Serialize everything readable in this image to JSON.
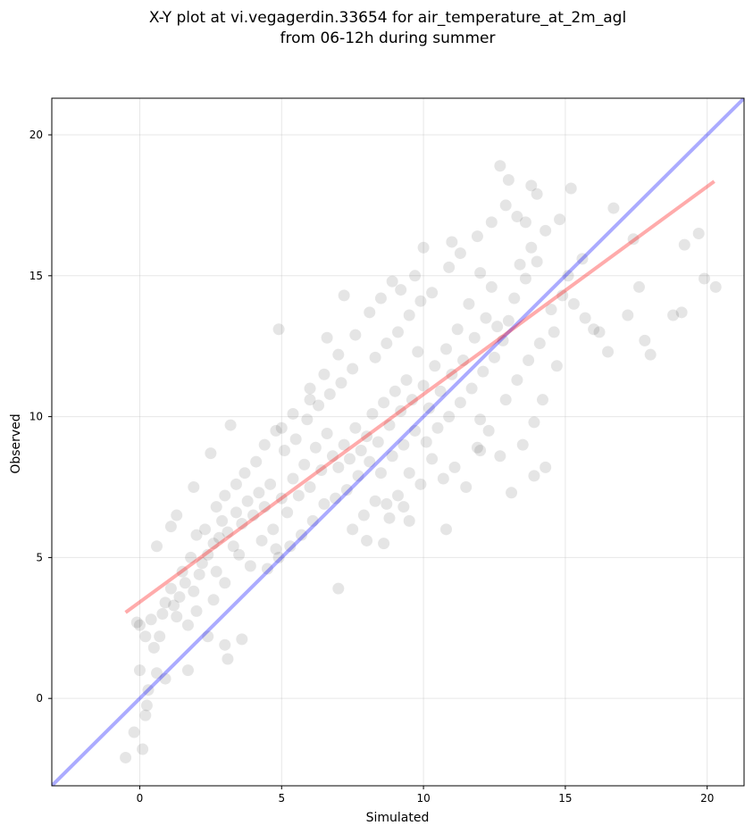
{
  "chart_data": {
    "type": "scatter",
    "title_line1": "X-Y plot at vi.vegagerdin.33654 for air_temperature_at_2m_agl",
    "title_line2": "from 06-12h during summer",
    "xlabel": "Simulated",
    "ylabel": "Observed",
    "xlim": [
      -3.1,
      21.3
    ],
    "ylim": [
      -3.1,
      21.3
    ],
    "xticks": [
      0,
      5,
      10,
      15,
      20
    ],
    "yticks": [
      0,
      5,
      10,
      15,
      20
    ],
    "xtick_labels": [
      "0",
      "5",
      "10",
      "15",
      "20"
    ],
    "ytick_labels": [
      "0",
      "5",
      "10",
      "15",
      "20"
    ],
    "grid": true,
    "marker_color": "#000000",
    "marker_alpha": 0.1,
    "series": [
      {
        "points": [
          [
            -0.5,
            -2.1
          ],
          [
            -0.2,
            -1.2
          ],
          [
            0.1,
            -1.8
          ],
          [
            0.2,
            -0.6
          ],
          [
            0.25,
            -0.25
          ],
          [
            0.3,
            0.3
          ],
          [
            0.0,
            1.0
          ],
          [
            0.6,
            0.9
          ],
          [
            0.9,
            0.7
          ],
          [
            0.5,
            1.8
          ],
          [
            0.2,
            2.2
          ],
          [
            0.0,
            2.6
          ],
          [
            -0.1,
            2.7
          ],
          [
            0.4,
            2.8
          ],
          [
            0.8,
            3.0
          ],
          [
            1.2,
            3.3
          ],
          [
            0.7,
            2.2
          ],
          [
            1.5,
            4.5
          ],
          [
            1.8,
            5.0
          ],
          [
            0.6,
            5.4
          ],
          [
            1.1,
            6.1
          ],
          [
            1.3,
            6.5
          ],
          [
            1.7,
            1.0
          ],
          [
            2.4,
            2.2
          ],
          [
            3.1,
            1.4
          ],
          [
            3.6,
            2.1
          ],
          [
            3.0,
            1.9
          ],
          [
            2.5,
            8.7
          ],
          [
            1.9,
            7.5
          ],
          [
            3.2,
            9.7
          ],
          [
            4.8,
            5.3
          ],
          [
            4.9,
            13.1
          ],
          [
            6.0,
            11.0
          ],
          [
            6.6,
            12.8
          ],
          [
            7.2,
            14.3
          ],
          [
            7.0,
            3.9
          ],
          [
            8.6,
            5.5
          ],
          [
            9.5,
            6.3
          ],
          [
            10.8,
            6.0
          ],
          [
            12.7,
            18.9
          ],
          [
            13.0,
            18.4
          ],
          [
            14.0,
            17.9
          ],
          [
            15.2,
            18.1
          ],
          [
            16.7,
            17.4
          ],
          [
            17.4,
            16.3
          ],
          [
            18.8,
            13.6
          ],
          [
            19.1,
            13.7
          ],
          [
            19.2,
            16.1
          ],
          [
            19.7,
            16.5
          ],
          [
            19.9,
            14.9
          ],
          [
            20.3,
            14.6
          ],
          [
            17.6,
            14.6
          ],
          [
            18.0,
            12.2
          ],
          [
            16.0,
            13.1
          ],
          [
            15.6,
            15.6
          ],
          [
            14.8,
            17.0
          ],
          [
            13.6,
            16.9
          ],
          [
            13.1,
            7.3
          ],
          [
            13.9,
            7.9
          ],
          [
            14.6,
            13.0
          ],
          [
            12.0,
            8.8
          ],
          [
            11.5,
            7.5
          ],
          [
            2.0,
            5.8
          ],
          [
            2.3,
            6.0
          ],
          [
            2.6,
            5.5
          ],
          [
            2.9,
            6.3
          ],
          [
            3.1,
            5.9
          ],
          [
            2.2,
            4.8
          ],
          [
            2.7,
            4.5
          ],
          [
            3.4,
            6.6
          ],
          [
            3.6,
            6.2
          ],
          [
            3.8,
            7.0
          ],
          [
            4.0,
            6.5
          ],
          [
            4.2,
            7.3
          ],
          [
            4.4,
            6.8
          ],
          [
            4.6,
            7.6
          ],
          [
            3.5,
            5.1
          ],
          [
            3.9,
            4.7
          ],
          [
            4.3,
            5.6
          ],
          [
            4.7,
            6.0
          ],
          [
            5.0,
            7.1
          ],
          [
            5.2,
            6.6
          ],
          [
            5.4,
            7.8
          ],
          [
            5.6,
            7.2
          ],
          [
            5.8,
            8.3
          ],
          [
            6.0,
            7.5
          ],
          [
            6.2,
            8.9
          ],
          [
            6.4,
            8.1
          ],
          [
            6.6,
            9.4
          ],
          [
            6.8,
            8.6
          ],
          [
            5.1,
            8.8
          ],
          [
            5.5,
            9.2
          ],
          [
            5.9,
            9.9
          ],
          [
            6.3,
            10.4
          ],
          [
            6.7,
            10.8
          ],
          [
            7.1,
            11.2
          ],
          [
            7.5,
            11.7
          ],
          [
            7.0,
            8.2
          ],
          [
            7.2,
            9.0
          ],
          [
            7.4,
            8.5
          ],
          [
            7.6,
            9.6
          ],
          [
            7.8,
            8.8
          ],
          [
            8.0,
            9.3
          ],
          [
            8.2,
            10.1
          ],
          [
            8.4,
            9.1
          ],
          [
            8.6,
            10.5
          ],
          [
            8.8,
            9.7
          ],
          [
            9.0,
            10.9
          ],
          [
            9.2,
            10.2
          ],
          [
            9.4,
            11.3
          ],
          [
            9.6,
            10.6
          ],
          [
            7.3,
            7.4
          ],
          [
            7.7,
            7.9
          ],
          [
            8.1,
            8.4
          ],
          [
            8.5,
            8.0
          ],
          [
            8.9,
            8.6
          ],
          [
            9.3,
            9.0
          ],
          [
            9.7,
            9.5
          ],
          [
            6.1,
            6.3
          ],
          [
            6.5,
            6.9
          ],
          [
            6.9,
            7.1
          ],
          [
            5.7,
            5.8
          ],
          [
            5.3,
            5.4
          ],
          [
            4.9,
            5.0
          ],
          [
            4.5,
            4.6
          ],
          [
            8.3,
            12.1
          ],
          [
            8.7,
            12.6
          ],
          [
            9.1,
            13.0
          ],
          [
            9.5,
            13.6
          ],
          [
            9.9,
            14.1
          ],
          [
            8.9,
            14.8
          ],
          [
            9.8,
            12.3
          ],
          [
            10.0,
            11.1
          ],
          [
            10.2,
            10.3
          ],
          [
            10.4,
            11.8
          ],
          [
            10.6,
            10.9
          ],
          [
            10.8,
            12.4
          ],
          [
            11.0,
            11.5
          ],
          [
            11.2,
            13.1
          ],
          [
            11.4,
            12.0
          ],
          [
            11.6,
            14.0
          ],
          [
            11.8,
            12.8
          ],
          [
            12.0,
            15.1
          ],
          [
            12.2,
            13.5
          ],
          [
            12.4,
            14.6
          ],
          [
            12.6,
            13.2
          ],
          [
            10.1,
            9.1
          ],
          [
            10.5,
            9.6
          ],
          [
            10.9,
            10.0
          ],
          [
            11.3,
            10.5
          ],
          [
            11.7,
            11.0
          ],
          [
            12.1,
            11.6
          ],
          [
            12.5,
            12.1
          ],
          [
            12.8,
            12.7
          ],
          [
            13.0,
            13.4
          ],
          [
            13.2,
            14.2
          ],
          [
            13.4,
            15.4
          ],
          [
            13.6,
            14.9
          ],
          [
            13.8,
            16.0
          ],
          [
            14.0,
            15.5
          ],
          [
            12.9,
            10.6
          ],
          [
            13.3,
            11.3
          ],
          [
            13.7,
            12.0
          ],
          [
            14.1,
            12.6
          ],
          [
            14.5,
            13.8
          ],
          [
            14.9,
            14.3
          ],
          [
            12.3,
            9.5
          ],
          [
            11.1,
            8.2
          ],
          [
            11.9,
            8.9
          ],
          [
            10.7,
            7.8
          ],
          [
            10.3,
            8.5
          ],
          [
            9.9,
            7.6
          ],
          [
            9.5,
            8.0
          ],
          [
            9.1,
            7.2
          ],
          [
            8.7,
            6.9
          ],
          [
            8.3,
            7.0
          ],
          [
            7.9,
            6.5
          ],
          [
            7.5,
            6.0
          ],
          [
            8.0,
            5.6
          ],
          [
            8.8,
            6.4
          ],
          [
            9.3,
            6.8
          ],
          [
            1.4,
            3.6
          ],
          [
            1.6,
            4.1
          ],
          [
            1.9,
            3.8
          ],
          [
            2.1,
            4.4
          ],
          [
            2.4,
            5.1
          ],
          [
            2.8,
            5.7
          ],
          [
            3.3,
            5.4
          ],
          [
            0.9,
            3.4
          ],
          [
            1.1,
            3.9
          ],
          [
            1.3,
            2.9
          ],
          [
            1.7,
            2.6
          ],
          [
            2.0,
            3.1
          ],
          [
            2.6,
            3.5
          ],
          [
            3.0,
            4.1
          ],
          [
            5.0,
            9.6
          ],
          [
            5.4,
            10.1
          ],
          [
            6.0,
            10.6
          ],
          [
            6.5,
            11.5
          ],
          [
            7.0,
            12.2
          ],
          [
            7.6,
            12.9
          ],
          [
            8.1,
            13.7
          ],
          [
            8.5,
            14.2
          ],
          [
            9.2,
            14.5
          ],
          [
            9.7,
            15.0
          ],
          [
            10.3,
            14.4
          ],
          [
            10.9,
            15.3
          ],
          [
            11.3,
            15.8
          ],
          [
            11.9,
            16.4
          ],
          [
            12.4,
            16.9
          ],
          [
            12.9,
            17.5
          ],
          [
            13.3,
            17.1
          ],
          [
            13.8,
            18.2
          ],
          [
            14.3,
            16.6
          ],
          [
            10.0,
            16.0
          ],
          [
            11.0,
            16.2
          ],
          [
            15.1,
            15.0
          ],
          [
            15.3,
            14.0
          ],
          [
            15.7,
            13.5
          ],
          [
            16.2,
            13.0
          ],
          [
            16.5,
            12.3
          ],
          [
            17.2,
            13.6
          ],
          [
            17.8,
            12.7
          ],
          [
            14.7,
            11.8
          ],
          [
            14.2,
            10.6
          ],
          [
            13.9,
            9.8
          ],
          [
            13.5,
            9.0
          ],
          [
            14.3,
            8.2
          ],
          [
            12.7,
            8.6
          ],
          [
            12.0,
            9.9
          ],
          [
            4.1,
            8.4
          ],
          [
            4.4,
            9.0
          ],
          [
            3.7,
            8.0
          ],
          [
            3.4,
            7.6
          ],
          [
            3.0,
            7.2
          ],
          [
            2.7,
            6.8
          ],
          [
            4.8,
            9.5
          ]
        ]
      }
    ],
    "identity_line": {
      "color": "#0000ff",
      "alpha": 0.33,
      "from": [
        -3.1,
        -3.1
      ],
      "to": [
        21.3,
        21.3
      ]
    },
    "fit_line": {
      "color": "#ff0000",
      "alpha": 0.33,
      "from": [
        -0.5,
        3.05
      ],
      "to": [
        20.25,
        18.35
      ]
    }
  }
}
